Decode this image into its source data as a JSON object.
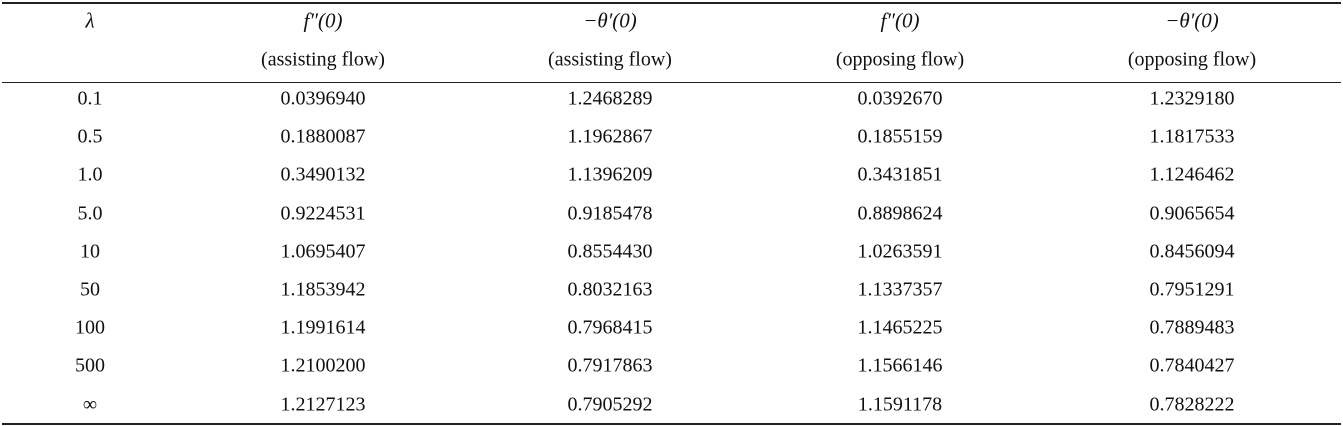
{
  "table": {
    "columns": [
      {
        "label": "λ"
      },
      {
        "label": "f″(0)",
        "sub": "(assisting flow)"
      },
      {
        "label": "−θ′(0)",
        "sub": "(assisting flow)"
      },
      {
        "label": "f″(0)",
        "sub": "(opposing flow)"
      },
      {
        "label": "−θ′(0)",
        "sub": "(opposing flow)"
      }
    ],
    "rows": [
      [
        "0.1",
        "0.0396940",
        "1.2468289",
        "0.0392670",
        "1.2329180"
      ],
      [
        "0.5",
        "0.1880087",
        "1.1962867",
        "0.1855159",
        "1.1817533"
      ],
      [
        "1.0",
        "0.3490132",
        "1.1396209",
        "0.3431851",
        "1.1246462"
      ],
      [
        "5.0",
        "0.9224531",
        "0.9185478",
        "0.8898624",
        "0.9065654"
      ],
      [
        "10",
        "1.0695407",
        "0.8554430",
        "1.0263591",
        "0.8456094"
      ],
      [
        "50",
        "1.1853942",
        "0.8032163",
        "1.1337357",
        "0.7951291"
      ],
      [
        "100",
        "1.1991614",
        "0.7968415",
        "1.1465225",
        "0.7889483"
      ],
      [
        "500",
        "1.2100200",
        "0.7917863",
        "1.1566146",
        "0.7840427"
      ],
      [
        "∞",
        "1.2127123",
        "0.7905292",
        "1.1591178",
        "0.7828222"
      ]
    ]
  }
}
